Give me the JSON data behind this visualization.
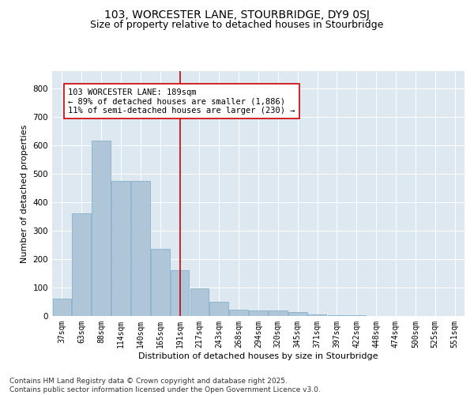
{
  "title1": "103, WORCESTER LANE, STOURBRIDGE, DY9 0SJ",
  "title2": "Size of property relative to detached houses in Stourbridge",
  "xlabel": "Distribution of detached houses by size in Stourbridge",
  "ylabel": "Number of detached properties",
  "categories": [
    "37sqm",
    "63sqm",
    "88sqm",
    "114sqm",
    "140sqm",
    "165sqm",
    "191sqm",
    "217sqm",
    "243sqm",
    "268sqm",
    "294sqm",
    "320sqm",
    "345sqm",
    "371sqm",
    "397sqm",
    "422sqm",
    "448sqm",
    "474sqm",
    "500sqm",
    "525sqm",
    "551sqm"
  ],
  "values": [
    62,
    360,
    617,
    473,
    473,
    236,
    162,
    98,
    50,
    22,
    20,
    19,
    14,
    5,
    2,
    2,
    1,
    1,
    1,
    1,
    1
  ],
  "bar_color": "#aec6d8",
  "bar_edge_color": "#7aaac8",
  "vline_x": 6,
  "vline_color": "#cc0000",
  "annotation_text": "103 WORCESTER LANE: 189sqm\n← 89% of detached houses are smaller (1,886)\n11% of semi-detached houses are larger (230) →",
  "annotation_box_color": "#ffffff",
  "annotation_box_edge_color": "#cc0000",
  "ylim": [
    0,
    860
  ],
  "yticks": [
    0,
    100,
    200,
    300,
    400,
    500,
    600,
    700,
    800
  ],
  "background_color": "#dde8f0",
  "footer_text": "Contains HM Land Registry data © Crown copyright and database right 2025.\nContains public sector information licensed under the Open Government Licence v3.0.",
  "title1_fontsize": 10,
  "title2_fontsize": 9,
  "xlabel_fontsize": 8,
  "ylabel_fontsize": 8,
  "annotation_fontsize": 7.5,
  "footer_fontsize": 6.5,
  "tick_fontsize": 7
}
